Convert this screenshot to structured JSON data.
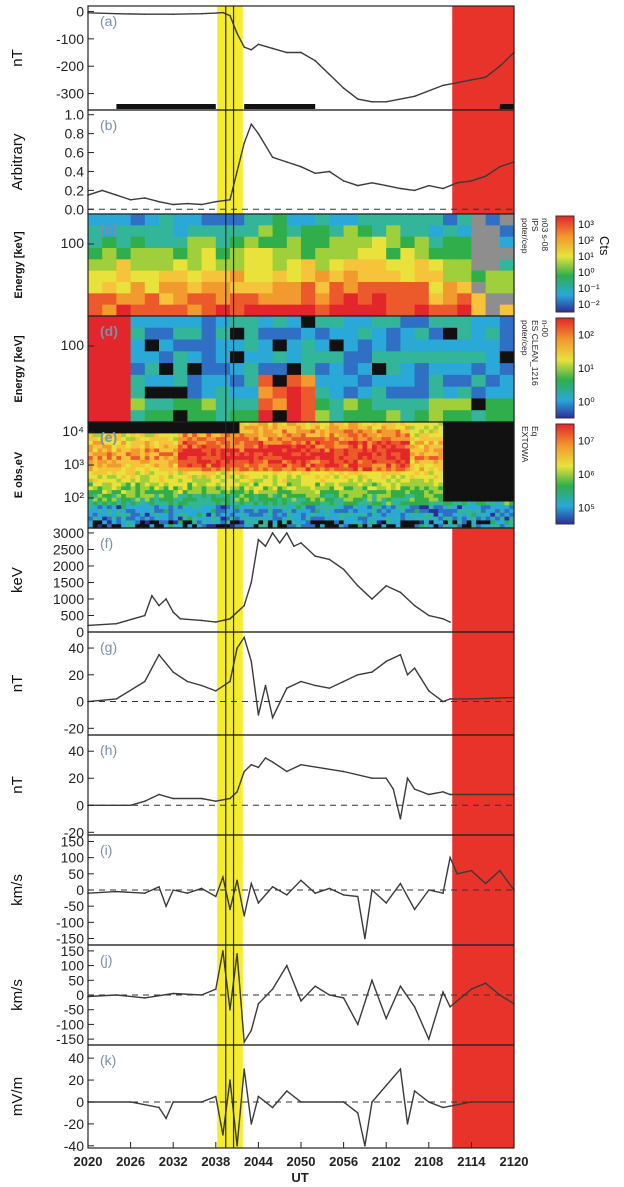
{
  "figure": {
    "xlabel": "UT",
    "x_ticks": [
      "2020",
      "2026",
      "2032",
      "2038",
      "2044",
      "2050",
      "2056",
      "2102",
      "2108",
      "2114",
      "2120"
    ],
    "highlights": [
      {
        "from": 2038.2,
        "to": 2041.8,
        "color": "#f4ec2c"
      },
      {
        "from": 2111.3,
        "to": 2120.0,
        "color": "#e8332a"
      }
    ],
    "vertical_lines": [
      2039.4,
      2040.5
    ]
  },
  "chart_data": [
    {
      "id": "a",
      "type": "line",
      "panel_label": "(a)",
      "ylabel": "nT",
      "ylim": [
        -360,
        20
      ],
      "yticks": [
        "0",
        "-100",
        "-200",
        "-300"
      ],
      "ytick_values": [
        0,
        -100,
        -200,
        -300
      ],
      "x": [
        2020,
        2024,
        2028,
        2032,
        2036,
        2038,
        2039,
        2040,
        2041,
        2042,
        2043,
        2044,
        2046,
        2048,
        2050,
        2052,
        2054,
        2056,
        2058,
        2100,
        2102,
        2106,
        2110,
        2114,
        2116,
        2118,
        2120
      ],
      "values": [
        -5,
        -8,
        -10,
        -10,
        -8,
        -6,
        -4,
        -15,
        -80,
        -130,
        -140,
        -120,
        -135,
        -150,
        -150,
        -180,
        -230,
        -280,
        -320,
        -330,
        -330,
        -310,
        -270,
        -250,
        -240,
        -200,
        -150
      ],
      "bars": [
        [
          2024,
          2038
        ],
        [
          2042,
          2052
        ],
        [
          2118,
          2120
        ]
      ]
    },
    {
      "id": "b",
      "type": "line",
      "panel_label": "(b)",
      "ylabel": "Arbitrary",
      "ylim": [
        -0.05,
        1.05
      ],
      "yticks": [
        "0.0",
        "0.2",
        "0.4",
        "0.6",
        "0.8",
        "1.0"
      ],
      "ytick_values": [
        0,
        0.2,
        0.4,
        0.6,
        0.8,
        1.0
      ],
      "x": [
        2020,
        2022,
        2024,
        2026,
        2028,
        2030,
        2032,
        2034,
        2036,
        2038,
        2040,
        2041,
        2042,
        2043,
        2044,
        2046,
        2048,
        2050,
        2052,
        2054,
        2056,
        2058,
        2100,
        2102,
        2104,
        2106,
        2108,
        2110,
        2112,
        2114,
        2116,
        2118,
        2120
      ],
      "values": [
        0.15,
        0.2,
        0.15,
        0.1,
        0.12,
        0.08,
        0.05,
        0.06,
        0.05,
        0.08,
        0.1,
        0.4,
        0.7,
        0.9,
        0.8,
        0.55,
        0.5,
        0.45,
        0.38,
        0.4,
        0.3,
        0.25,
        0.28,
        0.25,
        0.22,
        0.2,
        0.25,
        0.22,
        0.28,
        0.3,
        0.35,
        0.45,
        0.5
      ]
    },
    {
      "id": "c",
      "type": "heatmap",
      "panel_label": "(c)",
      "ylabel": "Energy [keV]",
      "yticks": [
        "100"
      ],
      "colorbar": {
        "title": "Cts",
        "ticks": [
          "10³",
          "10²",
          "10¹",
          "10⁰",
          "10⁻¹",
          "10⁻²"
        ]
      },
      "side_text": [
        "poter/cep",
        "IPS",
        "n03 s-08"
      ]
    },
    {
      "id": "d",
      "type": "heatmap",
      "panel_label": "(d)",
      "ylabel": "Energy [keV]",
      "yticks": [
        "100"
      ],
      "colorbar": {
        "title": "",
        "ticks": [
          "10²",
          "10¹",
          "10⁰"
        ]
      },
      "side_text": [
        "poter/cep",
        "ES CLEAN_1216",
        "n-00"
      ]
    },
    {
      "id": "e",
      "type": "heatmap",
      "panel_label": "(e)",
      "ylabel": "E obs,eV",
      "yticks": [
        "10⁴",
        "10³",
        "10²"
      ],
      "colorbar": {
        "title": "",
        "ticks": [
          "10⁷",
          "10⁶",
          "10⁵"
        ]
      },
      "side_text": [
        "EXTOWA",
        "Eq"
      ]
    },
    {
      "id": "f",
      "type": "line",
      "panel_label": "(f)",
      "ylabel": "keV",
      "ylim": [
        0,
        3150
      ],
      "yticks": [
        "3000",
        "2500",
        "2000",
        "1500",
        "1000",
        "500",
        "0"
      ],
      "ytick_values": [
        3000,
        2500,
        2000,
        1500,
        1000,
        500,
        0
      ],
      "x": [
        2020,
        2024,
        2028,
        2029,
        2030,
        2031,
        2032,
        2033,
        2036,
        2038,
        2040,
        2041,
        2042,
        2043,
        2044,
        2045,
        2046,
        2047,
        2048,
        2049,
        2050,
        2052,
        2054,
        2056,
        2058,
        2100,
        2102,
        2104,
        2106,
        2108,
        2110,
        2111
      ],
      "values": [
        200,
        250,
        500,
        1100,
        800,
        1000,
        600,
        400,
        350,
        300,
        400,
        600,
        800,
        1500,
        2800,
        2600,
        3000,
        2700,
        3000,
        2600,
        2700,
        2300,
        2200,
        1900,
        1400,
        1000,
        1400,
        1200,
        800,
        500,
        400,
        300
      ]
    },
    {
      "id": "g",
      "type": "line",
      "panel_label": "(g)",
      "ylabel": "nT",
      "ylim": [
        -25,
        52
      ],
      "yticks": [
        "40",
        "20",
        "0",
        "-20"
      ],
      "ytick_values": [
        40,
        20,
        0,
        -20
      ],
      "x": [
        2020,
        2024,
        2028,
        2030,
        2032,
        2034,
        2036,
        2038,
        2040,
        2041,
        2042,
        2043,
        2044,
        2045,
        2046,
        2048,
        2050,
        2052,
        2054,
        2056,
        2058,
        2100,
        2102,
        2104,
        2105,
        2106,
        2108,
        2110,
        2111,
        2114,
        2120
      ],
      "values": [
        0,
        2,
        15,
        35,
        22,
        15,
        12,
        8,
        15,
        40,
        48,
        30,
        -10,
        12,
        -12,
        10,
        15,
        12,
        10,
        15,
        20,
        22,
        30,
        35,
        20,
        25,
        8,
        0,
        2,
        2,
        3
      ]
    },
    {
      "id": "h",
      "type": "line",
      "panel_label": "(h)",
      "ylabel": "nT",
      "ylim": [
        -22,
        52
      ],
      "yticks": [
        "40",
        "20",
        "0",
        "-20"
      ],
      "ytick_values": [
        40,
        20,
        0,
        -20
      ],
      "x": [
        2020,
        2026,
        2028,
        2030,
        2032,
        2036,
        2038,
        2040,
        2041,
        2042,
        2043,
        2044,
        2045,
        2046,
        2048,
        2050,
        2056,
        2100,
        2102,
        2103,
        2104,
        2105,
        2106,
        2108,
        2110,
        2111,
        2114,
        2120
      ],
      "values": [
        0,
        0,
        3,
        8,
        5,
        5,
        3,
        5,
        10,
        25,
        30,
        28,
        35,
        32,
        25,
        30,
        25,
        20,
        20,
        12,
        -10,
        20,
        12,
        8,
        10,
        8,
        8,
        8
      ]
    },
    {
      "id": "i",
      "type": "line",
      "panel_label": "(i)",
      "ylabel": "km/s",
      "ylim": [
        -170,
        170
      ],
      "yticks": [
        "150",
        "100",
        "50",
        "0",
        "-50",
        "-100",
        "-150"
      ],
      "ytick_values": [
        150,
        100,
        50,
        0,
        -50,
        -100,
        -150
      ],
      "x": [
        2020,
        2024,
        2028,
        2030,
        2031,
        2032,
        2034,
        2036,
        2038,
        2039,
        2040,
        2041,
        2042,
        2043,
        2044,
        2046,
        2048,
        2050,
        2052,
        2054,
        2056,
        2058,
        2059,
        2100,
        2102,
        2104,
        2106,
        2108,
        2110,
        2111,
        2112,
        2114,
        2116,
        2118,
        2120
      ],
      "values": [
        -10,
        -5,
        -10,
        10,
        -50,
        0,
        -10,
        5,
        -20,
        40,
        -60,
        30,
        -80,
        20,
        -40,
        10,
        -15,
        30,
        -10,
        5,
        -15,
        -20,
        -150,
        0,
        -40,
        20,
        -60,
        0,
        -10,
        100,
        50,
        60,
        20,
        60,
        0
      ]
    },
    {
      "id": "j",
      "type": "line",
      "panel_label": "(j)",
      "ylabel": "km/s",
      "ylim": [
        -170,
        170
      ],
      "yticks": [
        "150",
        "100",
        "50",
        "0",
        "-50",
        "-100",
        "-150"
      ],
      "ytick_values": [
        150,
        100,
        50,
        0,
        -50,
        -100,
        -150
      ],
      "x": [
        2020,
        2024,
        2028,
        2032,
        2036,
        2038,
        2039,
        2040,
        2041,
        2042,
        2043,
        2044,
        2046,
        2048,
        2050,
        2052,
        2054,
        2056,
        2058,
        2100,
        2102,
        2104,
        2106,
        2108,
        2110,
        2111,
        2114,
        2116,
        2118,
        2120
      ],
      "values": [
        -5,
        0,
        -10,
        5,
        0,
        20,
        150,
        -50,
        140,
        -160,
        -120,
        -30,
        20,
        100,
        -20,
        30,
        0,
        -10,
        -100,
        50,
        -80,
        30,
        -40,
        -150,
        10,
        -40,
        20,
        40,
        0,
        -30
      ]
    },
    {
      "id": "k",
      "type": "line",
      "panel_label": "(k)",
      "ylabel": "mV/m",
      "ylim": [
        -42,
        52
      ],
      "yticks": [
        "40",
        "20",
        "0",
        "-20",
        "-40"
      ],
      "ytick_values": [
        40,
        20,
        0,
        -20,
        -40
      ],
      "x": [
        2020,
        2026,
        2030,
        2031,
        2032,
        2036,
        2038,
        2039,
        2040,
        2041,
        2042,
        2043,
        2044,
        2046,
        2048,
        2050,
        2056,
        2058,
        2059,
        2100,
        2102,
        2104,
        2105,
        2106,
        2108,
        2110,
        2114,
        2120
      ],
      "values": [
        0,
        0,
        -5,
        -15,
        0,
        0,
        5,
        -30,
        20,
        -40,
        30,
        -20,
        5,
        -5,
        10,
        0,
        0,
        -10,
        -40,
        0,
        15,
        30,
        -20,
        10,
        0,
        -5,
        0,
        0
      ]
    }
  ]
}
